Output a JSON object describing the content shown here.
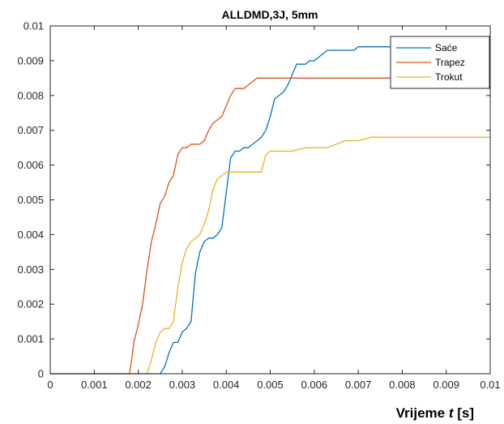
{
  "chart_data": {
    "type": "line",
    "title": "ALLDMD,3J, 5mm",
    "xlabel": {
      "pre": "Vrijeme ",
      "var": "t",
      "post": " [s]"
    },
    "ylabel": "",
    "xlim": [
      0,
      0.01
    ],
    "ylim": [
      0,
      0.01
    ],
    "xticks": [
      0,
      0.001,
      0.002,
      0.003,
      0.004,
      0.005,
      0.006,
      0.007,
      0.008,
      0.009,
      0.01
    ],
    "xtick_labels": [
      "0",
      "0.001",
      "0.002",
      "0.003",
      "0.004",
      "0.005",
      "0.006",
      "0.007",
      "0.008",
      "0.009",
      "0.01"
    ],
    "yticks": [
      0,
      0.001,
      0.002,
      0.003,
      0.004,
      0.005,
      0.006,
      0.007,
      0.008,
      0.009,
      0.01
    ],
    "ytick_labels": [
      "0",
      "0.001",
      "0.002",
      "0.003",
      "0.004",
      "0.005",
      "0.006",
      "0.007",
      "0.008",
      "0.009",
      "0.01"
    ],
    "grid": false,
    "legend_position": "top-right",
    "series": [
      {
        "name": "Saće",
        "color": "#0072BD",
        "x": [
          0,
          0.0025,
          0.0026,
          0.0027,
          0.0028,
          0.0029,
          0.003,
          0.0031,
          0.0032,
          0.0033,
          0.0034,
          0.0035,
          0.0036,
          0.0037,
          0.0038,
          0.0039,
          0.004,
          0.0041,
          0.0042,
          0.0043,
          0.0044,
          0.0045,
          0.0046,
          0.0047,
          0.0048,
          0.0049,
          0.005,
          0.0051,
          0.0052,
          0.0053,
          0.0054,
          0.0055,
          0.0056,
          0.0057,
          0.0058,
          0.0059,
          0.006,
          0.0061,
          0.0062,
          0.0063,
          0.0064,
          0.0066,
          0.0068,
          0.0069,
          0.007,
          0.0071,
          0.0072,
          0.0075,
          0.008,
          0.009,
          0.01
        ],
        "y": [
          0,
          0,
          0.0002,
          0.0006,
          0.0009,
          0.0009,
          0.0012,
          0.0013,
          0.0015,
          0.0029,
          0.0035,
          0.0038,
          0.0039,
          0.0039,
          0.004,
          0.0042,
          0.0052,
          0.0062,
          0.0064,
          0.0064,
          0.0065,
          0.0065,
          0.0066,
          0.0067,
          0.0068,
          0.007,
          0.0074,
          0.0079,
          0.008,
          0.0081,
          0.0083,
          0.0086,
          0.0089,
          0.0089,
          0.0089,
          0.009,
          0.009,
          0.0091,
          0.0092,
          0.0093,
          0.0093,
          0.0093,
          0.0093,
          0.0093,
          0.0094,
          0.0094,
          0.0094,
          0.0094,
          0.0094,
          0.0094,
          0.0094
        ]
      },
      {
        "name": "Trapez",
        "color": "#D95319",
        "x": [
          0,
          0.0018,
          0.00185,
          0.0019,
          0.002,
          0.0021,
          0.0022,
          0.0023,
          0.0024,
          0.0025,
          0.0026,
          0.0027,
          0.0028,
          0.0029,
          0.003,
          0.0031,
          0.0032,
          0.0033,
          0.0034,
          0.0035,
          0.0036,
          0.0037,
          0.0038,
          0.0039,
          0.004,
          0.0041,
          0.0042,
          0.0043,
          0.0044,
          0.0045,
          0.0046,
          0.0047,
          0.0048,
          0.0049,
          0.005,
          0.0052,
          0.0055,
          0.006,
          0.007,
          0.008,
          0.009,
          0.01
        ],
        "y": [
          0,
          0,
          0.0004,
          0.0009,
          0.0014,
          0.002,
          0.003,
          0.0038,
          0.0043,
          0.0049,
          0.0051,
          0.0055,
          0.0057,
          0.0063,
          0.0065,
          0.0065,
          0.0066,
          0.0066,
          0.0066,
          0.0067,
          0.007,
          0.0072,
          0.0073,
          0.0074,
          0.0077,
          0.008,
          0.0082,
          0.0082,
          0.0082,
          0.0083,
          0.0084,
          0.0085,
          0.0085,
          0.0085,
          0.0085,
          0.0085,
          0.0085,
          0.0085,
          0.0085,
          0.0085,
          0.0085,
          0.0085
        ]
      },
      {
        "name": "Trokut",
        "color": "#EDB120",
        "x": [
          0,
          0.0022,
          0.0023,
          0.0024,
          0.0025,
          0.0026,
          0.0027,
          0.0028,
          0.0029,
          0.003,
          0.0031,
          0.0032,
          0.0033,
          0.0034,
          0.0035,
          0.0036,
          0.0037,
          0.0038,
          0.0039,
          0.004,
          0.0041,
          0.0042,
          0.0044,
          0.0046,
          0.0048,
          0.0049,
          0.005,
          0.0052,
          0.0055,
          0.0058,
          0.006,
          0.0063,
          0.0065,
          0.0067,
          0.0069,
          0.007,
          0.0073,
          0.0075,
          0.008,
          0.009,
          0.01
        ],
        "y": [
          0,
          0,
          0.0004,
          0.0009,
          0.0012,
          0.0013,
          0.0013,
          0.0015,
          0.0025,
          0.0032,
          0.0036,
          0.0038,
          0.0039,
          0.004,
          0.0043,
          0.0047,
          0.0053,
          0.0056,
          0.0057,
          0.0058,
          0.0058,
          0.0058,
          0.0058,
          0.0058,
          0.0058,
          0.0063,
          0.0064,
          0.0064,
          0.0064,
          0.0065,
          0.0065,
          0.0065,
          0.0066,
          0.0067,
          0.0067,
          0.0067,
          0.0068,
          0.0068,
          0.0068,
          0.0068,
          0.0068
        ]
      }
    ]
  }
}
